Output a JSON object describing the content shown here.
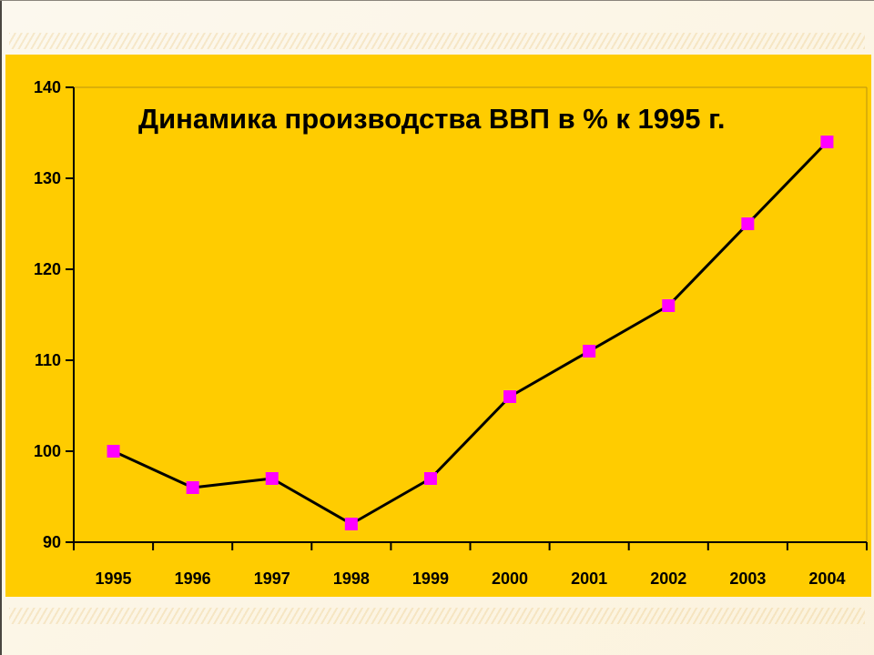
{
  "chart_data": {
    "type": "line",
    "title": "Динамика производства ВВП в % к 1995 г.",
    "xlabel": "",
    "ylabel": "",
    "categories": [
      "1995",
      "1996",
      "1997",
      "1998",
      "1999",
      "2000",
      "2001",
      "2002",
      "2003",
      "2004"
    ],
    "series": [
      {
        "values": [
          100,
          96,
          97,
          92,
          97,
          106,
          111,
          116,
          125,
          134
        ]
      }
    ],
    "ylim": [
      90,
      140
    ],
    "yticks": [
      "90",
      "100",
      "110",
      "120",
      "130",
      "140"
    ],
    "grid": false,
    "legend": "none",
    "colors": {
      "background": "#ffcc00",
      "line": "#000000",
      "marker": "#ff00ff"
    }
  }
}
